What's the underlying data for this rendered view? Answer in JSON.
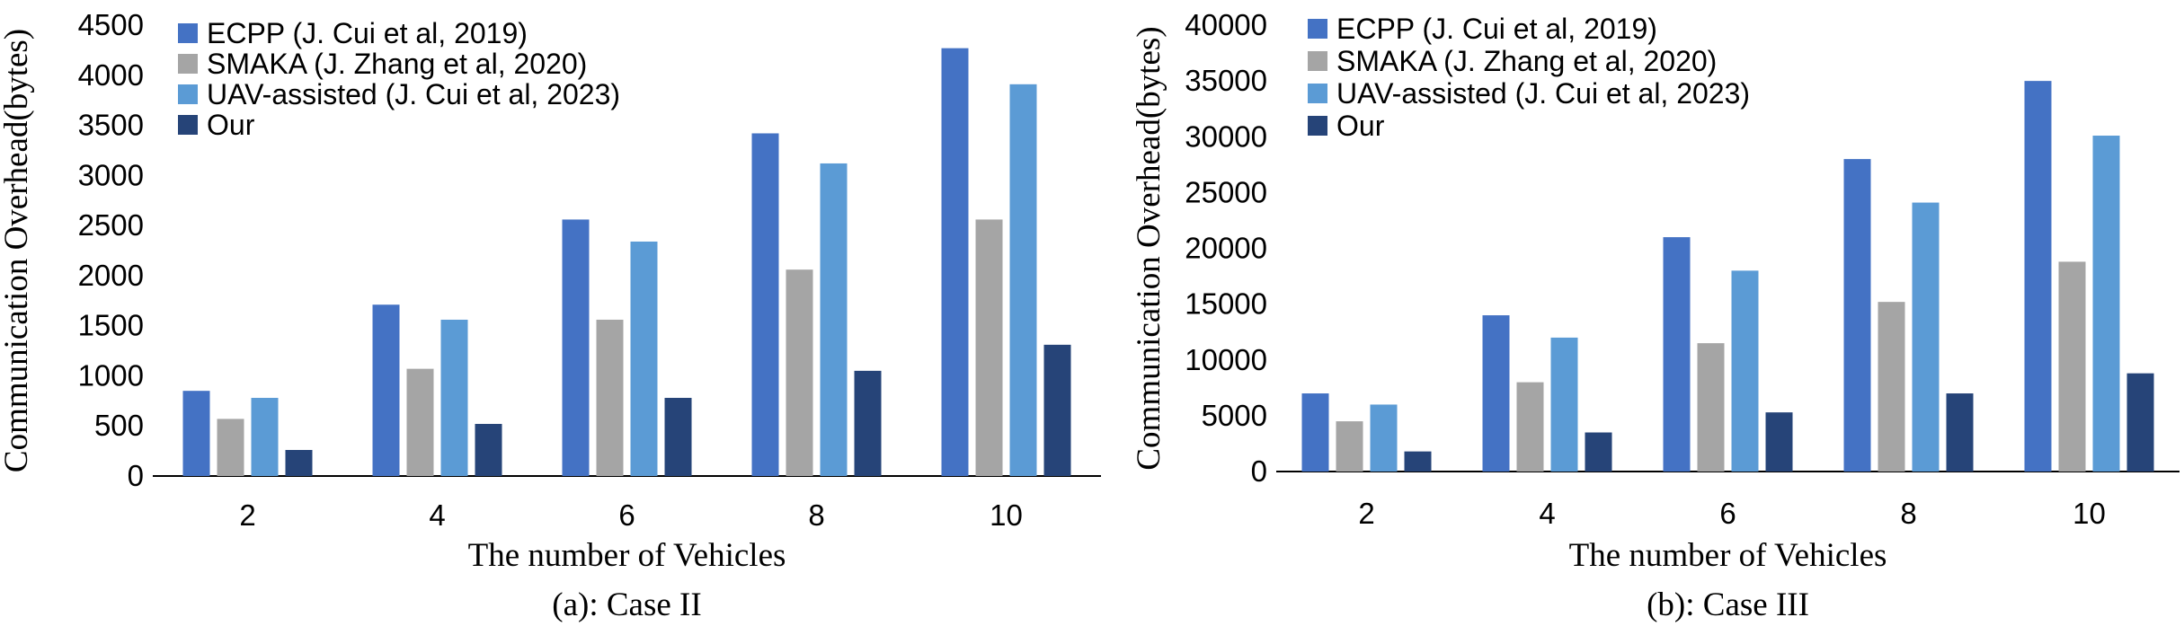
{
  "chart_data": [
    {
      "type": "bar",
      "caption": "(a): Case II",
      "xlabel": "The number of Vehicles",
      "ylabel": "Communication Overhead(bytes)",
      "categories": [
        "2",
        "4",
        "6",
        "8",
        "10"
      ],
      "ylim": [
        0,
        4500
      ],
      "yticks": [
        0,
        500,
        1000,
        1500,
        2000,
        2500,
        3000,
        3500,
        4000,
        4500
      ],
      "legend_position": "top-left",
      "series": [
        {
          "name": "ECPP (J. Cui et al, 2019)",
          "color": "#4472c4",
          "values": [
            850,
            1710,
            2560,
            3420,
            4270
          ]
        },
        {
          "name": "SMAKA (J. Zhang et al, 2020)",
          "color": "#a5a5a5",
          "values": [
            570,
            1070,
            1560,
            2060,
            2560
          ]
        },
        {
          "name": "UAV-assisted (J. Cui et al, 2023)",
          "color": "#5b9bd5",
          "values": [
            780,
            1560,
            2340,
            3120,
            3910
          ]
        },
        {
          "name": "Our",
          "color": "#264478",
          "values": [
            260,
            520,
            780,
            1050,
            1310
          ]
        }
      ]
    },
    {
      "type": "bar",
      "caption": "(b): Case III",
      "xlabel": "The number of Vehicles",
      "ylabel": "Communication Overhead(bytes)",
      "categories": [
        "2",
        "4",
        "6",
        "8",
        "10"
      ],
      "ylim": [
        0,
        40000
      ],
      "yticks": [
        0,
        5000,
        10000,
        15000,
        20000,
        25000,
        30000,
        35000,
        40000
      ],
      "legend_position": "top-left",
      "series": [
        {
          "name": "ECPP (J. Cui et al, 2019)",
          "color": "#4472c4",
          "values": [
            7000,
            14000,
            21000,
            28000,
            35000
          ]
        },
        {
          "name": "SMAKA (J. Zhang et al, 2020)",
          "color": "#a5a5a5",
          "values": [
            4500,
            8000,
            11500,
            15200,
            18800
          ]
        },
        {
          "name": "UAV-assisted (J. Cui et al, 2023)",
          "color": "#5b9bd5",
          "values": [
            6000,
            12000,
            18000,
            24100,
            30100
          ]
        },
        {
          "name": "Our",
          "color": "#264478",
          "values": [
            1800,
            3500,
            5300,
            7000,
            8800
          ]
        }
      ]
    }
  ]
}
